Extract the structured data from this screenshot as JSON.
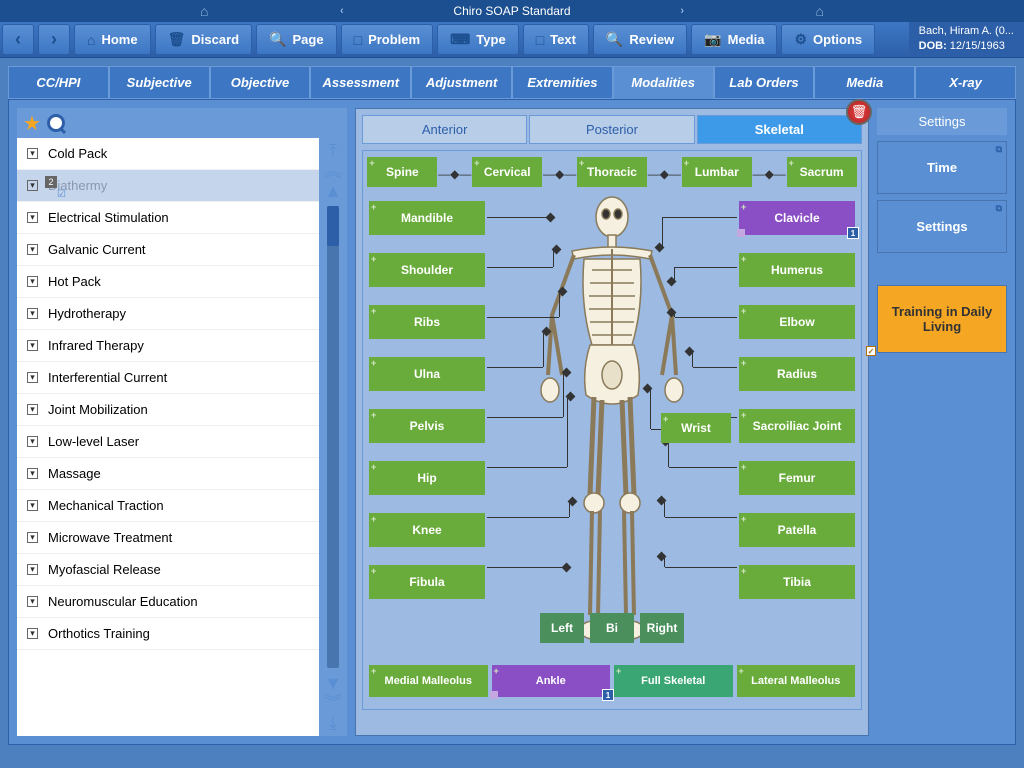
{
  "title": "Chiro SOAP Standard",
  "patient": {
    "name": "Bach, Hiram A. (0...",
    "dob_label": "DOB:",
    "dob": "12/15/1963"
  },
  "toolbar": {
    "home": "Home",
    "discard": "Discard",
    "page": "Page",
    "problem": "Problem",
    "type": "Type",
    "text": "Text",
    "review": "Review",
    "media": "Media",
    "options": "Options"
  },
  "tabs": [
    "CC/HPI",
    "Subjective",
    "Objective",
    "Assessment",
    "Adjustment",
    "Extremities",
    "Modalities",
    "Lab Orders",
    "Media",
    "X-ray"
  ],
  "active_tab": 6,
  "modalities": {
    "items": [
      "Cold Pack",
      "Diathermy",
      "Electrical Stimulation",
      "Galvanic Current",
      "Hot Pack",
      "Hydrotherapy",
      "Infrared Therapy",
      "Interferential Current",
      "Joint Mobilization",
      "Low-level Laser",
      "Massage",
      "Mechanical Traction",
      "Microwave Treatment",
      "Myofascial Release",
      "Neuromuscular Education",
      "Orthotics Training"
    ],
    "selected_index": 1,
    "selected_badge": "2"
  },
  "view_tabs": [
    "Anterior",
    "Posterior",
    "Skeletal"
  ],
  "active_view": 2,
  "regions": {
    "top": [
      "Spine",
      "Cervical",
      "Thoracic",
      "Lumbar",
      "Sacrum"
    ],
    "left": [
      "Mandible",
      "Shoulder",
      "Ribs",
      "Ulna",
      "Pelvis",
      "Hip",
      "Knee",
      "Fibula"
    ],
    "right": [
      "Clavicle",
      "Humerus",
      "Elbow",
      "Radius",
      "Sacroiliac Joint",
      "Femur",
      "Patella",
      "Tibia"
    ],
    "right_selected": 0,
    "right_count": "1",
    "wrist": "Wrist",
    "sides": [
      "Left",
      "Bi",
      "Right"
    ],
    "bottom": [
      "Medial Malleolus",
      "Ankle",
      "Full Skeletal",
      "Lateral Malleolus"
    ],
    "bottom_selected": 1,
    "bottom_count": "1",
    "bottom_teal": 2
  },
  "settings": {
    "header": "Settings",
    "time": "Time",
    "settings": "Settings",
    "training": "Training in Daily Living"
  },
  "colors": {
    "green": "#6aac3c",
    "purple": "#8a4fc4",
    "teal": "#3aa674",
    "orange": "#f5a623",
    "blue_dark": "#2d5fa8",
    "blue_mid": "#5a8fd4"
  }
}
